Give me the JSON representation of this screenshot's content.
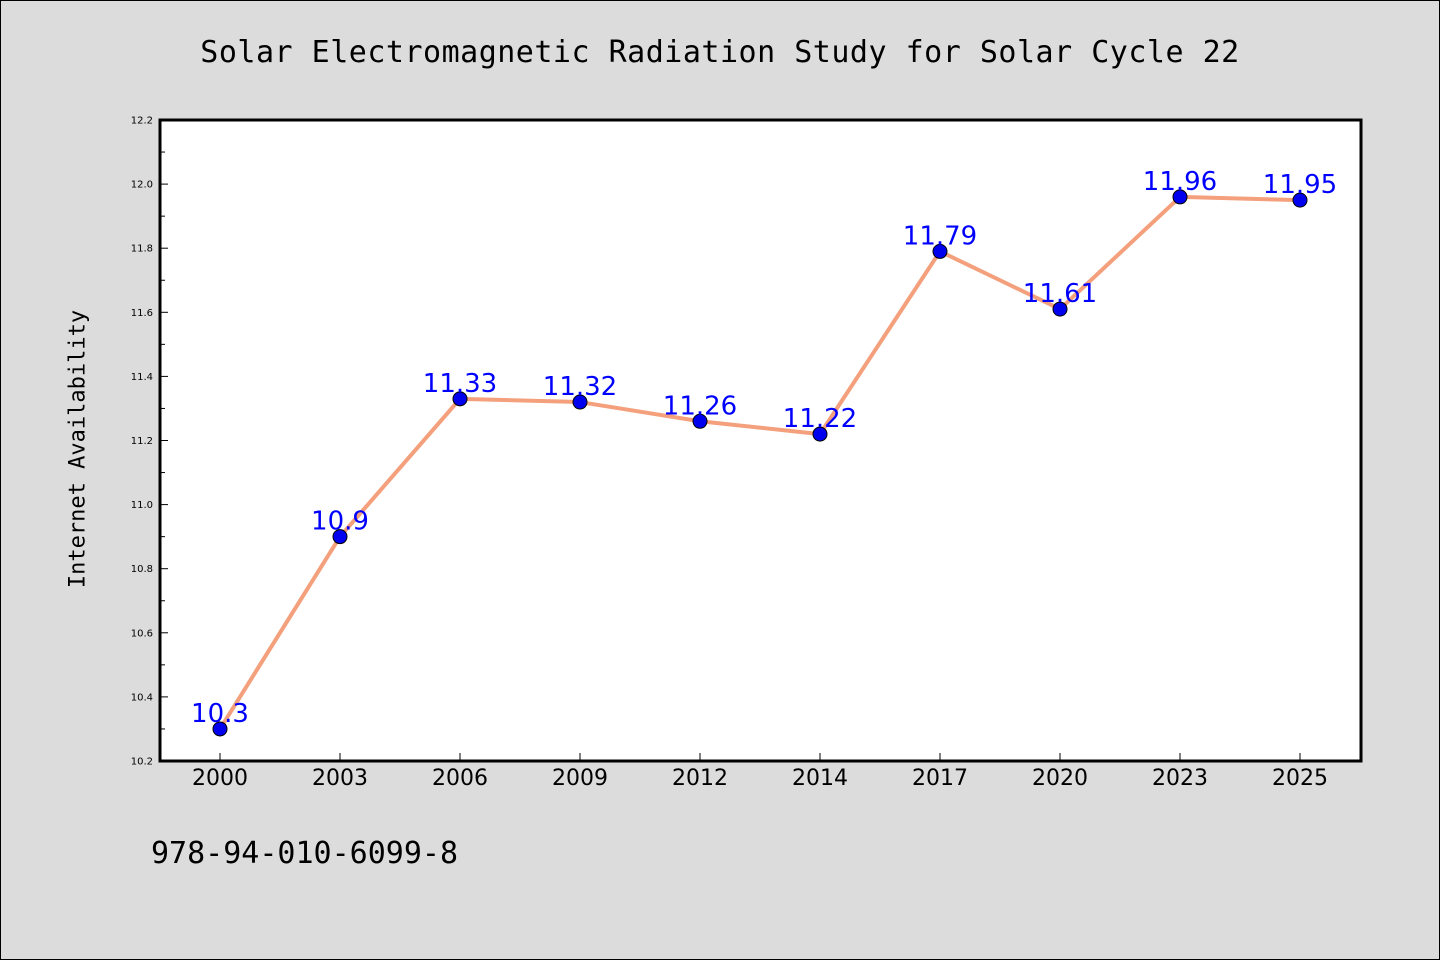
{
  "page": {
    "title": "Solar Electromagnetic Radiation Study for Solar Cycle 22",
    "footer_text": "978-94-010-6099-8"
  },
  "chart_data": {
    "type": "line",
    "title": "Solar Electromagnetic Radiation Study for Solar Cycle 22",
    "xlabel": "",
    "ylabel": "Internet Availability",
    "categories": [
      "2000",
      "2003",
      "2006",
      "2009",
      "2012",
      "2014",
      "2017",
      "2020",
      "2023",
      "2025"
    ],
    "series": [
      {
        "values": [
          10.3,
          10.9,
          11.33,
          11.32,
          11.26,
          11.22,
          11.79,
          11.61,
          11.96,
          11.95
        ],
        "data_labels": [
          "10.3",
          "10.9",
          "11.33",
          "11.32",
          "11.26",
          "11.22",
          "11.79",
          "11.61",
          "11.96",
          "11.95"
        ],
        "line_color": "#f4a07c",
        "marker_color": "#0000ee",
        "label_color": "#0000ff"
      }
    ],
    "ylim": [
      10.2,
      12.2
    ],
    "yticks": [
      "10.2",
      "10.4",
      "10.6",
      "10.8",
      "11.0",
      "11.2",
      "11.4",
      "11.6",
      "11.8",
      "12.0",
      "12.2"
    ],
    "grid": false,
    "background": "#ffffff",
    "figure_background": "#dcdcdc"
  }
}
